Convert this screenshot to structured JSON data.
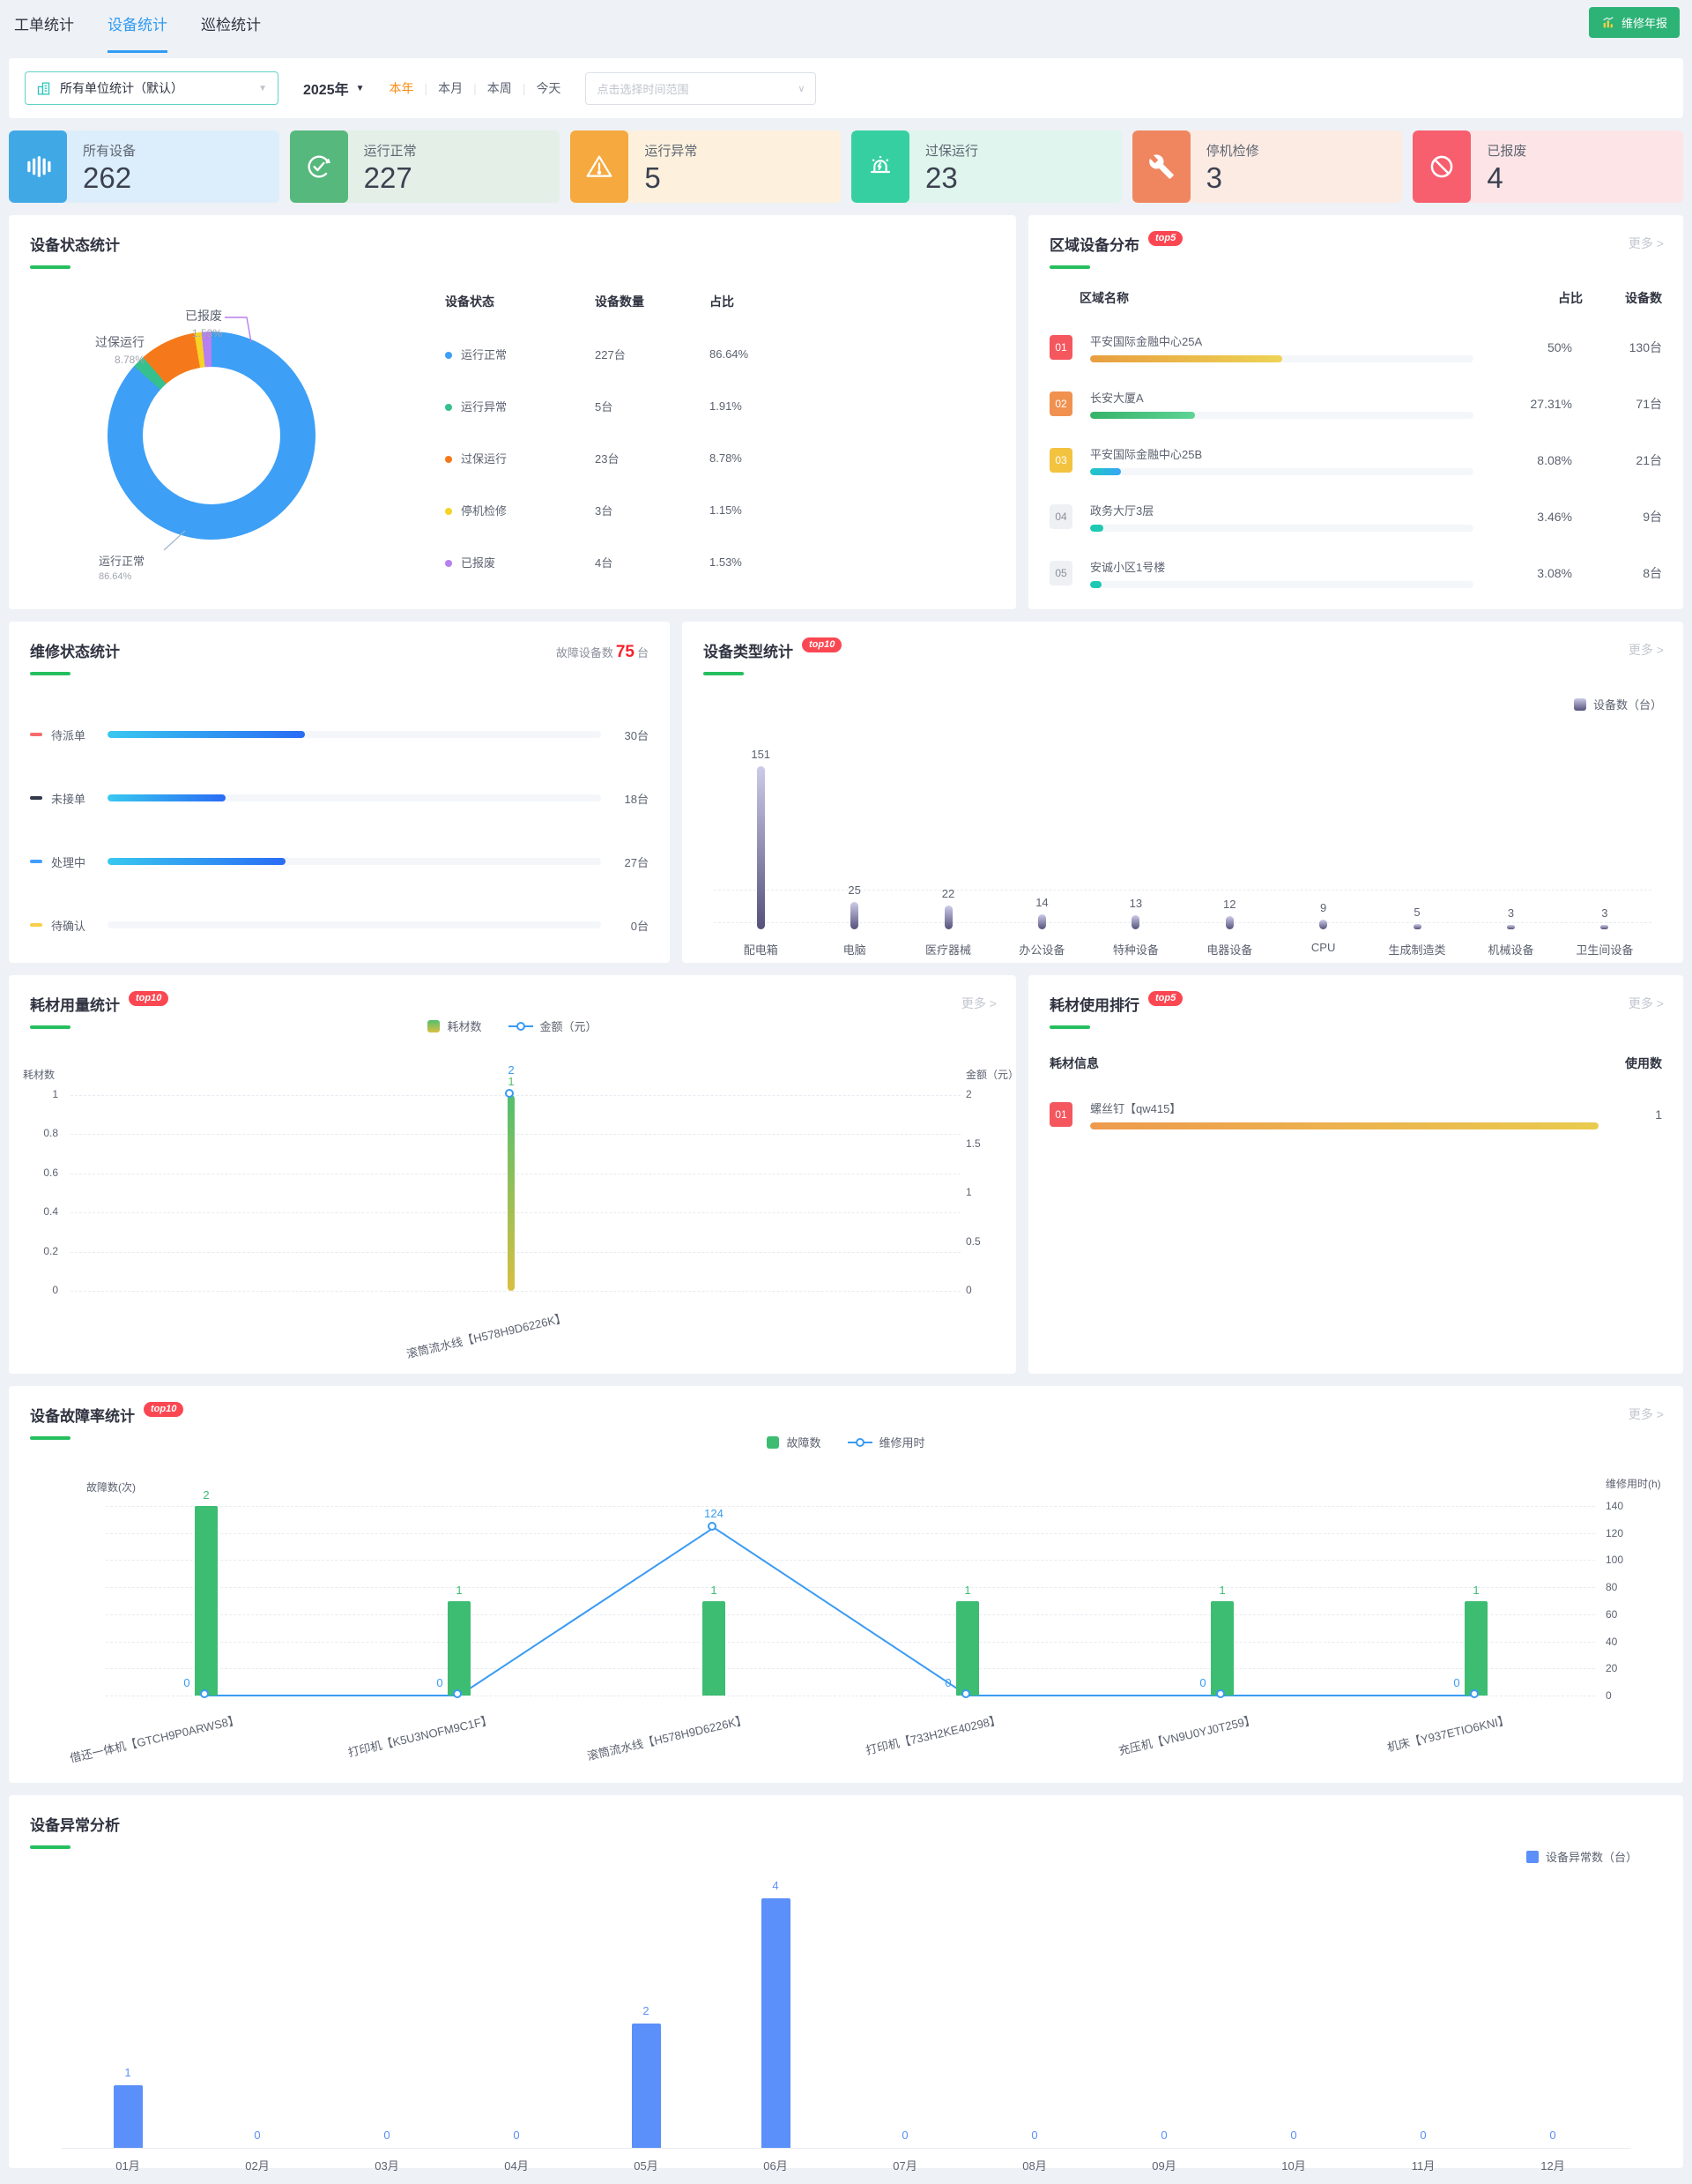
{
  "page": {
    "tabs": [
      {
        "label": "工单统计",
        "active": false
      },
      {
        "label": "设备统计",
        "active": true
      },
      {
        "label": "巡检统计",
        "active": false
      }
    ],
    "report_button": "维修年报"
  },
  "filters": {
    "unit_select": "所有单位统计（默认）",
    "year_select": "2025年",
    "quick_ranges": [
      "本年",
      "本月",
      "本周",
      "今天"
    ],
    "active_range": "本年",
    "date_range_placeholder": "点击选择时间范围"
  },
  "stat_cards": [
    {
      "label": "所有设备",
      "value": "262",
      "icon": "equalizer-icon",
      "icon_color": "#41a8e6",
      "tint": "#dceefb"
    },
    {
      "label": "运行正常",
      "value": "227",
      "icon": "check-cycle-icon",
      "icon_color": "#56b87c",
      "tint": "#e3efe7"
    },
    {
      "label": "运行异常",
      "value": "5",
      "icon": "warning-triangle-icon",
      "icon_color": "#f5a93e",
      "tint": "#fdf1dd"
    },
    {
      "label": "过保运行",
      "value": "23",
      "icon": "siren-icon",
      "icon_color": "#36cfa2",
      "tint": "#dff5ed"
    },
    {
      "label": "停机检修",
      "value": "3",
      "icon": "wrench-icon",
      "icon_color": "#ef8660",
      "tint": "#fcebe3"
    },
    {
      "label": "已报废",
      "value": "4",
      "icon": "no-entry-icon",
      "icon_color": "#f75e6e",
      "tint": "#fde5e7"
    }
  ],
  "panels": {
    "device_status": {
      "title": "设备状态统计",
      "table_headers": [
        "设备状态",
        "设备数量",
        "占比"
      ],
      "callouts": [
        {
          "label": "过保运行",
          "pct": "8.78%"
        },
        {
          "label": "已报废",
          "pct": "1.53%"
        },
        {
          "label": "运行正常",
          "pct": "86.64%"
        }
      ]
    },
    "region": {
      "title": "区域设备分布",
      "badge": "top5",
      "more": "更多 >",
      "headers": [
        "区域名称",
        "占比",
        "设备数"
      ],
      "rows": [
        {
          "rank": "01",
          "rank_color": "#f5575e",
          "name": "平安国际金融中心25A",
          "pct": "50%",
          "count": "130台",
          "fill": 50,
          "bar": [
            "#e89e3f",
            "#edd355"
          ]
        },
        {
          "rank": "02",
          "rank_color": "#f09150",
          "name": "长安大厦A",
          "pct": "27.31%",
          "count": "71台",
          "fill": 27.31,
          "bar": [
            "#35b36a",
            "#5ed395"
          ]
        },
        {
          "rank": "03",
          "rank_color": "#f3c33f",
          "name": "平安国际金融中心25B",
          "pct": "8.08%",
          "count": "21台",
          "fill": 8.08,
          "bar": [
            "#1fc7c0",
            "#35a6f8"
          ]
        },
        {
          "rank": "04",
          "rank_color": "",
          "name": "政务大厅3层",
          "pct": "3.46%",
          "count": "9台",
          "fill": 3.46,
          "bar": [
            "#1ec9b4",
            "#1ec9b4"
          ]
        },
        {
          "rank": "05",
          "rank_color": "",
          "name": "安诚小区1号楼",
          "pct": "3.08%",
          "count": "8台",
          "fill": 3.08,
          "bar": [
            "#1ec9b4",
            "#1ec9b4"
          ]
        }
      ]
    },
    "repair": {
      "title": "维修状态统计",
      "total_label": "故障设备数",
      "total_value": "75",
      "total_unit": "台",
      "rows": [
        {
          "label": "待派单",
          "marker": "#f56c6c",
          "value": "30台",
          "fill": 40
        },
        {
          "label": "未接单",
          "marker": "#32394a",
          "value": "18台",
          "fill": 24
        },
        {
          "label": "处理中",
          "marker": "#409eff",
          "value": "27台",
          "fill": 36
        },
        {
          "label": "待确认",
          "marker": "#f7cf4c",
          "value": "0台",
          "fill": 0
        }
      ],
      "bar_gradient": [
        "#38c8ef",
        "#2a6cf5"
      ]
    },
    "device_type": {
      "title": "设备类型统计",
      "badge": "top10",
      "more": "更多 >"
    },
    "consumable_usage": {
      "title": "耗材用量统计",
      "badge": "top10",
      "more": "更多 >"
    },
    "consumable_rank": {
      "title": "耗材使用排行",
      "badge": "top5",
      "more": "更多 >",
      "headers": [
        "耗材信息",
        "使用数"
      ],
      "rows": [
        {
          "rank": "01",
          "rank_color": "#f5575e",
          "name": "螺丝钉【qw415】",
          "value": "1",
          "fill": 100,
          "bar": [
            "#ee9a4d",
            "#e9cb4e"
          ]
        }
      ]
    },
    "fault_rate": {
      "title": "设备故障率统计",
      "badge": "top10",
      "more": "更多 >"
    },
    "monthly_abnormal": {
      "title": "设备异常分析"
    }
  },
  "chart_data": [
    {
      "id": "status_donut",
      "type": "pie",
      "title": "设备状态统计",
      "labels": [
        "运行正常",
        "运行异常",
        "过保运行",
        "停机检修",
        "已报废"
      ],
      "values": [
        227,
        5,
        23,
        3,
        4
      ],
      "counts": [
        "227台",
        "5台",
        "23台",
        "3台",
        "4台"
      ],
      "percents": [
        86.64,
        1.91,
        8.78,
        1.15,
        1.53
      ],
      "percent_labels": [
        "86.64%",
        "1.91%",
        "8.78%",
        "1.15%",
        "1.53%"
      ],
      "colors": [
        "#3d9ff5",
        "#35c08e",
        "#f5791a",
        "#f6d327",
        "#b77ff0"
      ]
    },
    {
      "id": "device_type",
      "type": "bar",
      "title": "设备类型统计",
      "legend": "设备数（台）",
      "categories": [
        "配电箱",
        "电脑",
        "医疗器械",
        "办公设备",
        "特种设备",
        "电器设备",
        "CPU",
        "生成制造类",
        "机械设备",
        "卫生间设备"
      ],
      "values": [
        151,
        25,
        22,
        14,
        13,
        12,
        9,
        5,
        3,
        3
      ],
      "bar_gradient": [
        "#cdcbe9",
        "#55517b"
      ],
      "ylim": [
        0,
        151
      ]
    },
    {
      "id": "consumable_usage",
      "type": "bar+line",
      "title": "耗材用量统计",
      "categories": [
        "滚筒流水线【H578H9D6226K】"
      ],
      "series": [
        {
          "name": "耗材数",
          "values": [
            1
          ],
          "gradient": [
            "#53bf6e",
            "#d9bf41"
          ]
        },
        {
          "name": "金额（元）",
          "values": [
            2
          ],
          "color": "#3a9bf3"
        }
      ],
      "left_axis": {
        "label": "耗材数",
        "ticks": [
          "1",
          "0.8",
          "0.6",
          "0.4",
          "0.2",
          "0"
        ],
        "max": 1
      },
      "right_axis": {
        "label": "金额（元）",
        "ticks": [
          "2",
          "1.5",
          "1",
          "0.5",
          "0"
        ],
        "max": 2
      }
    },
    {
      "id": "fault_rate",
      "type": "bar+line",
      "title": "设备故障率统计",
      "categories": [
        "借还一体机【GTCH9P0ARWS8】",
        "打印机【K5U3NOFM9C1F】",
        "滚筒流水线【H578H9D6226K】",
        "打印机【733H2KE40298】",
        "充压机【VN9U0YJ0T259】",
        "机床【Y937ETIO6KNI】"
      ],
      "series": [
        {
          "name": "故障数",
          "values": [
            2,
            1,
            1,
            1,
            1,
            1
          ],
          "color": "#3cbd72"
        },
        {
          "name": "维修用时",
          "values": [
            0,
            0,
            124,
            0,
            0,
            0
          ],
          "color": "#3a9bf3"
        }
      ],
      "left_axis": {
        "label": "故障数(次)",
        "max": 2
      },
      "right_axis": {
        "label": "维修用时(h)",
        "ticks": [
          "140",
          "120",
          "100",
          "80",
          "60",
          "40",
          "20",
          "0"
        ],
        "max": 140
      }
    },
    {
      "id": "monthly_abnormal",
      "type": "bar",
      "title": "设备异常分析",
      "legend": "设备异常数（台）",
      "categories": [
        "01月",
        "02月",
        "03月",
        "04月",
        "05月",
        "06月",
        "07月",
        "08月",
        "09月",
        "10月",
        "11月",
        "12月"
      ],
      "values": [
        1,
        0,
        0,
        0,
        2,
        4,
        0,
        0,
        0,
        0,
        0,
        0
      ],
      "color": "#5b8ff9",
      "ylim": [
        0,
        4
      ]
    }
  ]
}
